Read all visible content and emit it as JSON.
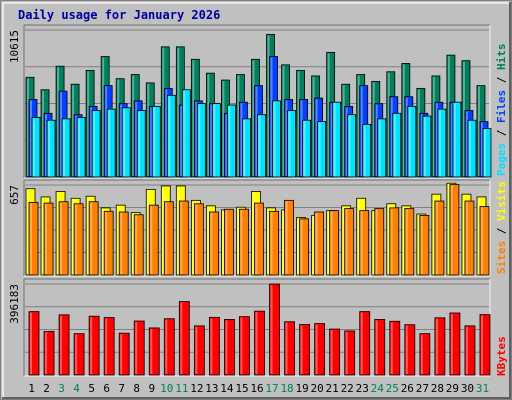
{
  "title": "Daily usage for January 2026",
  "colors": {
    "hits": "#00805c",
    "files": "#0040ff",
    "pages": "#00e0ff",
    "visits": "#ffff00",
    "sites": "#ff8000",
    "kbytes": "#ff0000",
    "weekend_day_label": "#00805c",
    "weekday_day_label": "#000000"
  },
  "chart_data": [
    {
      "type": "bar",
      "panel": "hits-files-pages",
      "y_max_label": "10615",
      "ylim": [
        0,
        10615
      ],
      "categories": [
        "1",
        "2",
        "3",
        "4",
        "5",
        "6",
        "7",
        "8",
        "9",
        "10",
        "11",
        "12",
        "13",
        "14",
        "15",
        "16",
        "17",
        "18",
        "19",
        "20",
        "21",
        "22",
        "23",
        "24",
        "25",
        "26",
        "27",
        "28",
        "29",
        "30",
        "31"
      ],
      "series": [
        {
          "name": "Hits",
          "values": [
            7200,
            6300,
            8000,
            6700,
            7700,
            8700,
            7100,
            7400,
            6800,
            9400,
            9400,
            8500,
            7500,
            7000,
            7400,
            8500,
            10300,
            8100,
            7700,
            7300,
            9000,
            6700,
            7400,
            6900,
            7600,
            8200,
            6400,
            7300,
            8800,
            8400,
            6600
          ]
        },
        {
          "name": "Files",
          "values": [
            5600,
            4600,
            6200,
            4500,
            5100,
            6600,
            5300,
            5500,
            5100,
            6400,
            5200,
            5500,
            5300,
            4600,
            5400,
            6600,
            8700,
            5600,
            5600,
            5700,
            5400,
            5100,
            6600,
            5300,
            5800,
            5800,
            4600,
            5400,
            5400,
            4800,
            4000
          ]
        },
        {
          "name": "Pages",
          "values": [
            4300,
            4100,
            4200,
            4300,
            4800,
            4900,
            5000,
            4800,
            5100,
            5900,
            6300,
            5300,
            5300,
            5200,
            4200,
            4500,
            5500,
            4800,
            4100,
            4000,
            5400,
            4500,
            3800,
            4200,
            4600,
            5100,
            4400,
            4900,
            5400,
            4100,
            3500
          ]
        }
      ]
    },
    {
      "type": "bar",
      "panel": "visits-sites",
      "y_max_label": "657",
      "ylim": [
        0,
        657
      ],
      "categories": [
        "1",
        "2",
        "3",
        "4",
        "5",
        "6",
        "7",
        "8",
        "9",
        "10",
        "11",
        "12",
        "13",
        "14",
        "15",
        "16",
        "17",
        "18",
        "19",
        "20",
        "21",
        "22",
        "23",
        "24",
        "25",
        "26",
        "27",
        "28",
        "29",
        "30",
        "31"
      ],
      "series": [
        {
          "name": "Visits",
          "values": [
            630,
            570,
            610,
            560,
            575,
            490,
            510,
            455,
            625,
            650,
            650,
            545,
            505,
            475,
            495,
            610,
            490,
            475,
            420,
            435,
            470,
            505,
            560,
            470,
            520,
            505,
            445,
            590,
            670,
            590,
            570
          ]
        },
        {
          "name": "Sites",
          "values": [
            530,
            525,
            535,
            520,
            535,
            465,
            460,
            440,
            510,
            535,
            540,
            520,
            460,
            480,
            480,
            525,
            465,
            545,
            410,
            460,
            470,
            485,
            470,
            485,
            490,
            485,
            435,
            540,
            660,
            540,
            500
          ]
        }
      ]
    },
    {
      "type": "bar",
      "panel": "kbytes",
      "y_max_label": "396183",
      "ylim": [
        0,
        396183
      ],
      "categories": [
        "1",
        "2",
        "3",
        "4",
        "5",
        "6",
        "7",
        "8",
        "9",
        "10",
        "11",
        "12",
        "13",
        "14",
        "15",
        "16",
        "17",
        "18",
        "19",
        "20",
        "21",
        "22",
        "23",
        "24",
        "25",
        "26",
        "27",
        "28",
        "29",
        "30",
        "31"
      ],
      "series": [
        {
          "name": "KBytes",
          "values": [
            276000,
            190000,
            262000,
            180000,
            256000,
            250000,
            182000,
            235000,
            205000,
            245000,
            320000,
            214000,
            251000,
            242000,
            254000,
            278000,
            396000,
            232000,
            220000,
            224000,
            200000,
            192000,
            276000,
            242000,
            234000,
            219000,
            180000,
            249000,
            270000,
            214000,
            263000
          ]
        }
      ]
    }
  ],
  "legend": {
    "pages": "Pages",
    "files": "Files",
    "hits": "Hits",
    "sep1": " / ",
    "sep2": " / ",
    "sites": "Sites",
    "visits": "Visits",
    "sep3": " / ",
    "kbytes": "KBytes"
  },
  "weekend_days": [
    3,
    4,
    10,
    11,
    17,
    18,
    24,
    25,
    31
  ]
}
